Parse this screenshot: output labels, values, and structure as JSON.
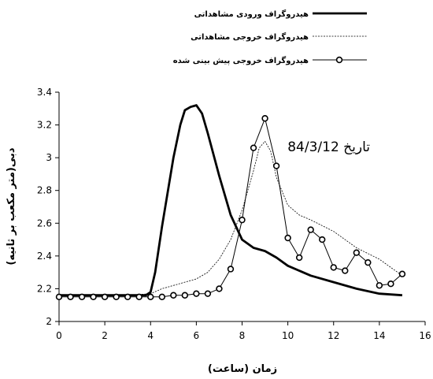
{
  "chart_data": {
    "type": "line",
    "xlabel": "زمان (ساعت)",
    "ylabel": "دبی(متر مکعب بر ثانیه)",
    "xlim": [
      0,
      16
    ],
    "ylim": [
      2,
      3.4
    ],
    "x_ticks": [
      "0",
      "2",
      "4",
      "6",
      "8",
      "10",
      "12",
      "14",
      "16"
    ],
    "y_ticks": [
      "2",
      "2.2",
      "2.4",
      "2.6",
      "2.8",
      "3",
      "3.2",
      "3.4"
    ],
    "annotation": "تاریخ 84/3/12",
    "legend_position": "top-right",
    "grid": false,
    "series": [
      {
        "name": "هیدروگراف ورودی مشاهداتی",
        "style": "solid-thick",
        "color": "#000000",
        "x": [
          0,
          1,
          2,
          3,
          3.8,
          4,
          4.2,
          4.5,
          5,
          5.3,
          5.5,
          5.75,
          6,
          6.25,
          6.5,
          7,
          7.5,
          8,
          8.5,
          9,
          9.5,
          10,
          11,
          12,
          13,
          14,
          15
        ],
        "values": [
          2.16,
          2.16,
          2.16,
          2.16,
          2.16,
          2.18,
          2.3,
          2.58,
          3.0,
          3.2,
          3.29,
          3.31,
          3.32,
          3.27,
          3.15,
          2.89,
          2.65,
          2.5,
          2.45,
          2.43,
          2.39,
          2.34,
          2.28,
          2.24,
          2.2,
          2.17,
          2.16
        ]
      },
      {
        "name": "هیدروگراف خروجی مشاهداتی",
        "style": "dashed-thin",
        "color": "#000000",
        "x": [
          0,
          1,
          2,
          3,
          4,
          4.5,
          5,
          5.5,
          6,
          6.5,
          7,
          7.5,
          8,
          8.5,
          8.75,
          9,
          9.25,
          9.5,
          10,
          10.5,
          11,
          12,
          13,
          14,
          15
        ],
        "values": [
          2.16,
          2.16,
          2.16,
          2.16,
          2.17,
          2.2,
          2.22,
          2.24,
          2.26,
          2.3,
          2.38,
          2.5,
          2.68,
          2.92,
          3.06,
          3.1,
          3.04,
          2.88,
          2.71,
          2.65,
          2.62,
          2.55,
          2.45,
          2.38,
          2.28
        ]
      },
      {
        "name": "هیدروگراف خروجی پیش بینی شده",
        "style": "solid-thin-markers",
        "color": "#000000",
        "x": [
          0,
          0.5,
          1,
          1.5,
          2,
          2.5,
          3,
          3.5,
          4,
          4.5,
          5,
          5.5,
          6,
          6.5,
          7,
          7.5,
          8,
          8.5,
          9,
          9.5,
          10,
          10.5,
          11,
          11.5,
          12,
          12.5,
          13,
          13.5,
          14,
          14.5,
          15
        ],
        "values": [
          2.15,
          2.15,
          2.15,
          2.15,
          2.15,
          2.15,
          2.15,
          2.15,
          2.15,
          2.15,
          2.16,
          2.16,
          2.17,
          2.17,
          2.2,
          2.32,
          2.62,
          3.06,
          3.24,
          2.95,
          2.51,
          2.39,
          2.56,
          2.5,
          2.33,
          2.31,
          2.42,
          2.36,
          2.22,
          2.23,
          2.29
        ]
      }
    ]
  }
}
